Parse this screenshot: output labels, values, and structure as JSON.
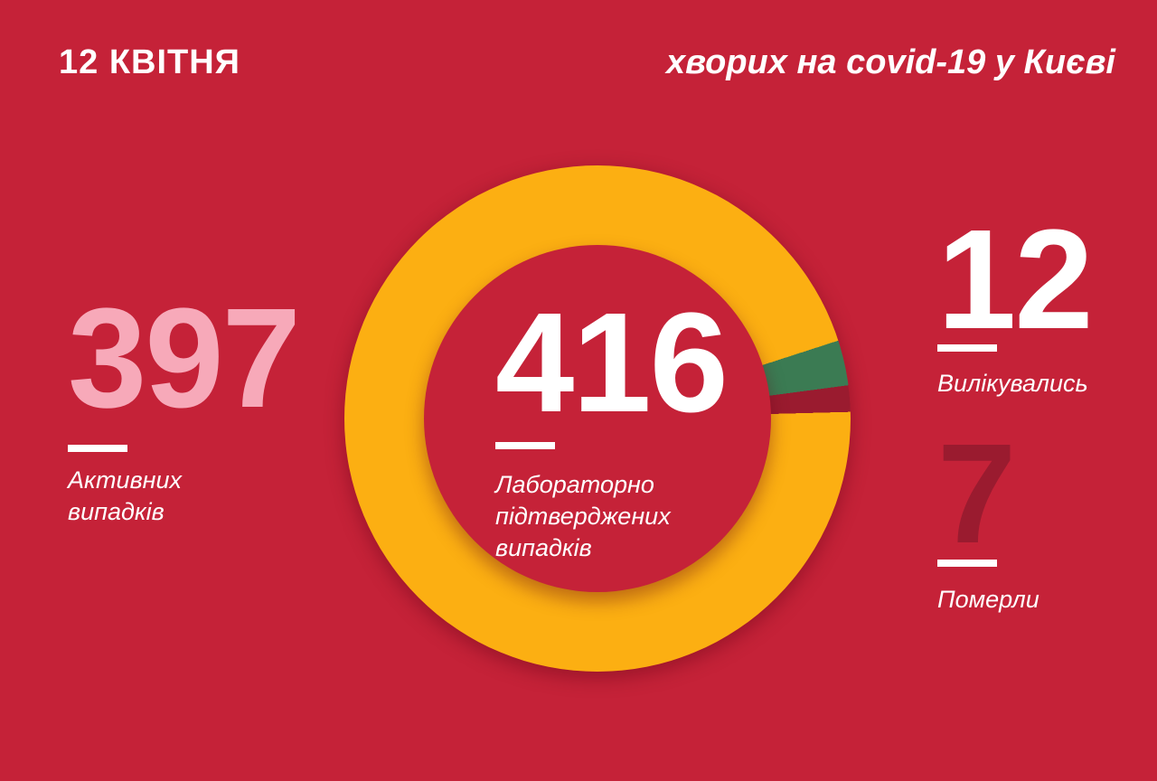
{
  "colors": {
    "background": "#c52238",
    "orange": "#fcaf12",
    "green": "#3b7b53",
    "maroon": "#9a1b2f",
    "pink": "#f7a9b9",
    "white": "#ffffff"
  },
  "header": {
    "date": "12 КВІТНЯ",
    "title": "хворих на covid-19 у Києві"
  },
  "stats": {
    "active": {
      "value": "397",
      "lines": [
        "Активних",
        "випадків"
      ],
      "color": "#f7a9b9"
    },
    "confirmed": {
      "value": "416",
      "lines": [
        "Лабораторно",
        "підтверджених",
        "випадків"
      ],
      "color": "#ffffff"
    },
    "recovered": {
      "value": "12",
      "label": "Вилікувались",
      "color": "#ffffff"
    },
    "deaths": {
      "value": "7",
      "label": "Померли",
      "color": "#9a1b2f"
    }
  },
  "chart_data": {
    "type": "pie",
    "donut": true,
    "title": "хворих на covid-19 у Києві",
    "date": "12 КВІТНЯ",
    "total": 416,
    "center_value": 416,
    "center_label": "Лабораторно підтверджених випадків",
    "segments": [
      {
        "label": "Активних випадків",
        "value": 397,
        "color": "#fcaf12"
      },
      {
        "label": "Вилікувались",
        "value": 12,
        "color": "#3b7b53"
      },
      {
        "label": "Померли",
        "value": 7,
        "color": "#9a1b2f"
      }
    ],
    "segments_end_angle_deg": 88.5,
    "legend_position": "none"
  }
}
